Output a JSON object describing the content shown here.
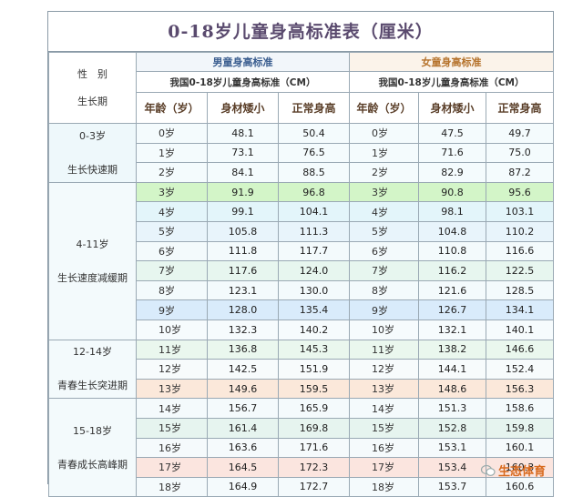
{
  "title": "0-18岁儿童身高标准表（厘米）",
  "header": {
    "sex_label": "性　别",
    "stage_label": "生长期",
    "male_title": "男童身高标准",
    "female_title": "女童身高标准",
    "male_sub": "我国0-18岁儿童身高标准（CM）",
    "female_sub": "我国0-18岁儿童身高标准（CM）",
    "col_age": "年龄（岁）",
    "col_small": "身材矮小",
    "col_normal": "正常身高"
  },
  "stages": [
    {
      "range": "0-3岁",
      "name": "生长快速期"
    },
    {
      "range": "4-11岁",
      "name": "生长速度减缓期"
    },
    {
      "range": "12-14岁",
      "name": "青春生长突进期"
    },
    {
      "range": "15-18岁",
      "name": "青春成长高峰期"
    }
  ],
  "rows": [
    {
      "age": "0岁",
      "m_small": "48.1",
      "m_normal": "50.4",
      "f_small": "47.5",
      "f_normal": "49.7",
      "color": "#f4fbfd"
    },
    {
      "age": "1岁",
      "m_small": "73.1",
      "m_normal": "76.5",
      "f_small": "71.6",
      "f_normal": "75.0",
      "color": "#f4fbfd"
    },
    {
      "age": "2岁",
      "m_small": "84.1",
      "m_normal": "88.5",
      "f_small": "82.9",
      "f_normal": "87.2",
      "color": "#f4fbfd"
    },
    {
      "age": "3岁",
      "m_small": "91.9",
      "m_normal": "96.8",
      "f_small": "90.8",
      "f_normal": "95.6",
      "color": "#d3f5c8"
    },
    {
      "age": "4岁",
      "m_small": "99.1",
      "m_normal": "104.1",
      "f_small": "98.1",
      "f_normal": "103.1",
      "color": "#e3f5fa"
    },
    {
      "age": "5岁",
      "m_small": "105.8",
      "m_normal": "111.3",
      "f_small": "104.8",
      "f_normal": "110.2",
      "color": "#e8f4fb"
    },
    {
      "age": "6岁",
      "m_small": "111.8",
      "m_normal": "117.7",
      "f_small": "110.8",
      "f_normal": "116.6",
      "color": "#f3fafc"
    },
    {
      "age": "7岁",
      "m_small": "117.6",
      "m_normal": "124.0",
      "f_small": "116.2",
      "f_normal": "122.5",
      "color": "#e7f6ef"
    },
    {
      "age": "8岁",
      "m_small": "123.1",
      "m_normal": "130.0",
      "f_small": "121.6",
      "f_normal": "128.5",
      "color": "#f3fafc"
    },
    {
      "age": "9岁",
      "m_small": "128.0",
      "m_normal": "135.4",
      "f_small": "126.7",
      "f_normal": "134.1",
      "color": "#d9ebfb"
    },
    {
      "age": "10岁",
      "m_small": "132.3",
      "m_normal": "140.2",
      "f_small": "132.1",
      "f_normal": "140.1",
      "color": "#f6fbfd"
    },
    {
      "age": "11岁",
      "m_small": "136.8",
      "m_normal": "145.3",
      "f_small": "138.2",
      "f_normal": "146.6",
      "color": "#eaf7ee"
    },
    {
      "age": "12岁",
      "m_small": "142.5",
      "m_normal": "151.9",
      "f_small": "144.1",
      "f_normal": "152.4",
      "color": "#f7fbfc"
    },
    {
      "age": "13岁",
      "m_small": "149.6",
      "m_normal": "159.5",
      "f_small": "148.6",
      "f_normal": "156.3",
      "color": "#fbe8da"
    },
    {
      "age": "14岁",
      "m_small": "156.7",
      "m_normal": "165.9",
      "f_small": "151.3",
      "f_normal": "158.6",
      "color": "#f4fafc"
    },
    {
      "age": "15岁",
      "m_small": "161.4",
      "m_normal": "169.8",
      "f_small": "152.8",
      "f_normal": "159.8",
      "color": "#e6f4ef"
    },
    {
      "age": "16岁",
      "m_small": "163.6",
      "m_normal": "171.6",
      "f_small": "153.1",
      "f_normal": "160.1",
      "color": "#f5fafc"
    },
    {
      "age": "17岁",
      "m_small": "164.5",
      "m_normal": "172.3",
      "f_small": "153.4",
      "f_normal": "160.3",
      "color": "#fbe5df"
    },
    {
      "age": "18岁",
      "m_small": "164.9",
      "m_normal": "172.7",
      "f_small": "153.7",
      "f_normal": "160.6",
      "color": "#f4fafc"
    }
  ],
  "watermark": "生态体育"
}
